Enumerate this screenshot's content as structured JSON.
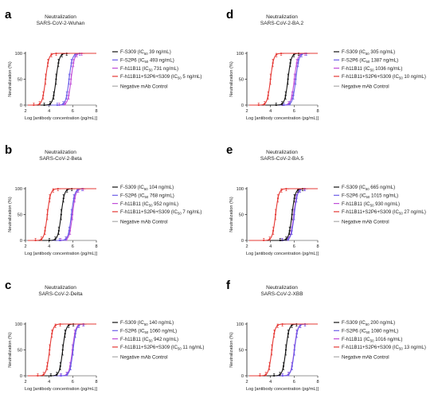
{
  "chart_data": [
    {
      "panel": "a",
      "type": "line",
      "title": "Neutralization",
      "subtitle": "SARS-CoV-2-Wuhan",
      "xlabel": "Log [antibody concentration (pg/mL)]",
      "ylabel": "Neutralization (%)",
      "xlim": [
        2,
        8
      ],
      "ylim": [
        0,
        100
      ],
      "xticks": [
        "2",
        "4",
        "6",
        "8"
      ],
      "yticks": [
        "0",
        "50",
        "100"
      ],
      "series": [
        {
          "name": "F-S309",
          "ic50": "39 ng/mL",
          "color": "#111111",
          "logic50": 4.59
        },
        {
          "name": "F-S2P6",
          "ic50": "493 ng/mL",
          "color": "#6c5ce7",
          "logic50": 5.69
        },
        {
          "name": "F-h11B11",
          "ic50": "731 ng/mL",
          "color": "#c04dd8",
          "logic50": 5.86
        },
        {
          "name": "F-h11B11+S2P6+S309",
          "ic50": "5 ng/mL",
          "color": "#e53935",
          "logic50": 3.7
        },
        {
          "name": "Negative mAb Control",
          "ic50": "",
          "color": "#aaaaaa",
          "logic50": null
        }
      ]
    },
    {
      "panel": "b",
      "type": "line",
      "title": "Neutralization",
      "subtitle": "SARS-CoV-2-Beta",
      "xlabel": "Log [antibody concentration (pg/mL)]",
      "ylabel": "Neutralization (%)",
      "xlim": [
        2,
        8
      ],
      "ylim": [
        0,
        100
      ],
      "xticks": [
        "2",
        "4",
        "6",
        "8"
      ],
      "yticks": [
        "0",
        "50",
        "100"
      ],
      "series": [
        {
          "name": "F-S309",
          "ic50": "104 ng/mL",
          "color": "#111111",
          "logic50": 5.02
        },
        {
          "name": "F-S2P6",
          "ic50": "768 ng/mL",
          "color": "#6c5ce7",
          "logic50": 5.89
        },
        {
          "name": "F-h11B11",
          "ic50": "952 ng/mL",
          "color": "#c04dd8",
          "logic50": 5.98
        },
        {
          "name": "F-h11B11+S2P6+S309",
          "ic50": "7 ng/mL",
          "color": "#e53935",
          "logic50": 3.85
        },
        {
          "name": "Negative mAb Control",
          "ic50": "",
          "color": "#aaaaaa",
          "logic50": null
        }
      ]
    },
    {
      "panel": "c",
      "type": "line",
      "title": "Neutralization",
      "subtitle": "SARS-CoV-2-Delta",
      "xlabel": "Log [antibody concentration (pg/mL)]",
      "ylabel": "Neutralization (%)",
      "xlim": [
        2,
        8
      ],
      "ylim": [
        0,
        100
      ],
      "xticks": [
        "2",
        "4",
        "6",
        "8"
      ],
      "yticks": [
        "0",
        "50",
        "100"
      ],
      "series": [
        {
          "name": "F-S309",
          "ic50": "140 ng/mL",
          "color": "#111111",
          "logic50": 5.15
        },
        {
          "name": "F-S2P6",
          "ic50": "1060 ng/mL",
          "color": "#6c5ce7",
          "logic50": 6.03
        },
        {
          "name": "F-h11B11",
          "ic50": "942 ng/mL",
          "color": "#c04dd8",
          "logic50": 5.97
        },
        {
          "name": "F-h11B11+S2P6+S309",
          "ic50": "11 ng/mL",
          "color": "#e53935",
          "logic50": 4.04
        },
        {
          "name": "Negative mAb Control",
          "ic50": "",
          "color": "#aaaaaa",
          "logic50": null
        }
      ]
    },
    {
      "panel": "d",
      "type": "line",
      "title": "Neutralization",
      "subtitle": "SARS-CoV-2-BA.2",
      "xlabel": "Log [antibody concentration (pg/mL)]",
      "ylabel": "Neutralization (%)",
      "xlim": [
        2,
        8
      ],
      "ylim": [
        0,
        100
      ],
      "xticks": [
        "2",
        "4",
        "6",
        "8"
      ],
      "yticks": [
        "0",
        "50",
        "100"
      ],
      "series": [
        {
          "name": "F-S309",
          "ic50": "305 ng/mL",
          "color": "#111111",
          "logic50": 5.48
        },
        {
          "name": "F-S2P6",
          "ic50": "1387 ng/mL",
          "color": "#6c5ce7",
          "logic50": 6.14
        },
        {
          "name": "F-h11B11",
          "ic50": "1036 ng/mL",
          "color": "#c04dd8",
          "logic50": 6.02
        },
        {
          "name": "F-h11B11+S2P6+S309",
          "ic50": "10 ng/mL",
          "color": "#e53935",
          "logic50": 4.0
        },
        {
          "name": "Negative mAb Control",
          "ic50": "",
          "color": "#aaaaaa",
          "logic50": null
        }
      ]
    },
    {
      "panel": "e",
      "type": "line",
      "title": "Neutralization",
      "subtitle": "SARS-CoV-2-BA.5",
      "xlabel": "Log [antibody concentration (pg/mL)]",
      "ylabel": "Neutralization (%)",
      "xlim": [
        2,
        8
      ],
      "ylim": [
        0,
        100
      ],
      "xticks": [
        "2",
        "4",
        "6",
        "8"
      ],
      "yticks": [
        "0",
        "50",
        "100"
      ],
      "series": [
        {
          "name": "F-S309",
          "ic50": "665 ng/mL",
          "color": "#111111",
          "logic50": 5.82
        },
        {
          "name": "F-S2P6",
          "ic50": "1015 ng/mL",
          "color": "#6c5ce7",
          "logic50": 6.01
        },
        {
          "name": "F-h11B11",
          "ic50": "930 ng/mL",
          "color": "#c04dd8",
          "logic50": 5.97
        },
        {
          "name": "F-h11B11+S2P6+S309",
          "ic50": "27 ng/mL",
          "color": "#e53935",
          "logic50": 4.43
        },
        {
          "name": "Negative mAb Control",
          "ic50": "",
          "color": "#aaaaaa",
          "logic50": null
        }
      ]
    },
    {
      "panel": "f",
      "type": "line",
      "title": "Neutralization",
      "subtitle": "SARS-CoV-2-XBB",
      "xlabel": "Log [antibody concentration (pg/mL)]",
      "ylabel": "Neutralization (%)",
      "xlim": [
        2,
        8
      ],
      "ylim": [
        0,
        100
      ],
      "xticks": [
        "2",
        "4",
        "6",
        "8"
      ],
      "yticks": [
        "0",
        "50",
        "100"
      ],
      "series": [
        {
          "name": "F-S309",
          "ic50": "200 ng/mL",
          "color": "#111111",
          "logic50": 5.3
        },
        {
          "name": "F-S2P6",
          "ic50": "1080 ng/mL",
          "color": "#6c5ce7",
          "logic50": 6.03
        },
        {
          "name": "F-h11B11",
          "ic50": "1016 ng/mL",
          "color": "#c04dd8",
          "logic50": 6.01
        },
        {
          "name": "F-h11B11+S2P6+S309",
          "ic50": "13 ng/mL",
          "color": "#e53935",
          "logic50": 4.11
        },
        {
          "name": "Negative mAb Control",
          "ic50": "",
          "color": "#aaaaaa",
          "logic50": null
        }
      ]
    }
  ]
}
